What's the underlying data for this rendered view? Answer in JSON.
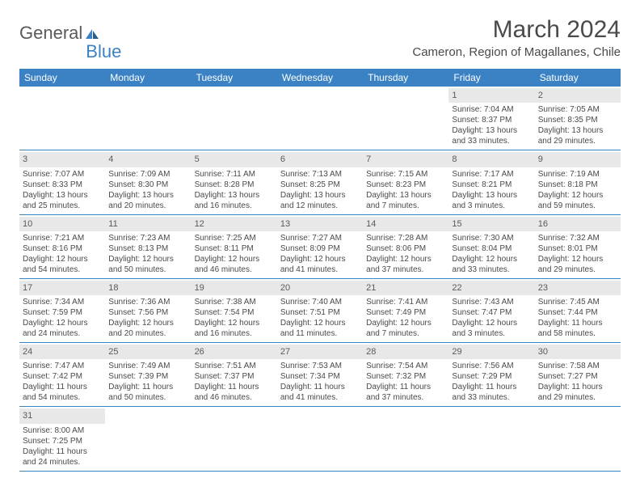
{
  "logo": {
    "text_general": "General",
    "text_blue": "Blue"
  },
  "title": "March 2024",
  "location": "Cameron, Region of Magallanes, Chile",
  "day_names": [
    "Sunday",
    "Monday",
    "Tuesday",
    "Wednesday",
    "Thursday",
    "Friday",
    "Saturday"
  ],
  "colors": {
    "header_bg": "#3b82c4",
    "header_fg": "#ffffff",
    "daynum_bg": "#e8e8e8",
    "text": "#4a4a4a"
  },
  "weeks": [
    [
      null,
      null,
      null,
      null,
      null,
      {
        "n": "1",
        "sr": "7:04 AM",
        "ss": "8:37 PM",
        "dl": "13 hours and 33 minutes."
      },
      {
        "n": "2",
        "sr": "7:05 AM",
        "ss": "8:35 PM",
        "dl": "13 hours and 29 minutes."
      }
    ],
    [
      {
        "n": "3",
        "sr": "7:07 AM",
        "ss": "8:33 PM",
        "dl": "13 hours and 25 minutes."
      },
      {
        "n": "4",
        "sr": "7:09 AM",
        "ss": "8:30 PM",
        "dl": "13 hours and 20 minutes."
      },
      {
        "n": "5",
        "sr": "7:11 AM",
        "ss": "8:28 PM",
        "dl": "13 hours and 16 minutes."
      },
      {
        "n": "6",
        "sr": "7:13 AM",
        "ss": "8:25 PM",
        "dl": "13 hours and 12 minutes."
      },
      {
        "n": "7",
        "sr": "7:15 AM",
        "ss": "8:23 PM",
        "dl": "13 hours and 7 minutes."
      },
      {
        "n": "8",
        "sr": "7:17 AM",
        "ss": "8:21 PM",
        "dl": "13 hours and 3 minutes."
      },
      {
        "n": "9",
        "sr": "7:19 AM",
        "ss": "8:18 PM",
        "dl": "12 hours and 59 minutes."
      }
    ],
    [
      {
        "n": "10",
        "sr": "7:21 AM",
        "ss": "8:16 PM",
        "dl": "12 hours and 54 minutes."
      },
      {
        "n": "11",
        "sr": "7:23 AM",
        "ss": "8:13 PM",
        "dl": "12 hours and 50 minutes."
      },
      {
        "n": "12",
        "sr": "7:25 AM",
        "ss": "8:11 PM",
        "dl": "12 hours and 46 minutes."
      },
      {
        "n": "13",
        "sr": "7:27 AM",
        "ss": "8:09 PM",
        "dl": "12 hours and 41 minutes."
      },
      {
        "n": "14",
        "sr": "7:28 AM",
        "ss": "8:06 PM",
        "dl": "12 hours and 37 minutes."
      },
      {
        "n": "15",
        "sr": "7:30 AM",
        "ss": "8:04 PM",
        "dl": "12 hours and 33 minutes."
      },
      {
        "n": "16",
        "sr": "7:32 AM",
        "ss": "8:01 PM",
        "dl": "12 hours and 29 minutes."
      }
    ],
    [
      {
        "n": "17",
        "sr": "7:34 AM",
        "ss": "7:59 PM",
        "dl": "12 hours and 24 minutes."
      },
      {
        "n": "18",
        "sr": "7:36 AM",
        "ss": "7:56 PM",
        "dl": "12 hours and 20 minutes."
      },
      {
        "n": "19",
        "sr": "7:38 AM",
        "ss": "7:54 PM",
        "dl": "12 hours and 16 minutes."
      },
      {
        "n": "20",
        "sr": "7:40 AM",
        "ss": "7:51 PM",
        "dl": "12 hours and 11 minutes."
      },
      {
        "n": "21",
        "sr": "7:41 AM",
        "ss": "7:49 PM",
        "dl": "12 hours and 7 minutes."
      },
      {
        "n": "22",
        "sr": "7:43 AM",
        "ss": "7:47 PM",
        "dl": "12 hours and 3 minutes."
      },
      {
        "n": "23",
        "sr": "7:45 AM",
        "ss": "7:44 PM",
        "dl": "11 hours and 58 minutes."
      }
    ],
    [
      {
        "n": "24",
        "sr": "7:47 AM",
        "ss": "7:42 PM",
        "dl": "11 hours and 54 minutes."
      },
      {
        "n": "25",
        "sr": "7:49 AM",
        "ss": "7:39 PM",
        "dl": "11 hours and 50 minutes."
      },
      {
        "n": "26",
        "sr": "7:51 AM",
        "ss": "7:37 PM",
        "dl": "11 hours and 46 minutes."
      },
      {
        "n": "27",
        "sr": "7:53 AM",
        "ss": "7:34 PM",
        "dl": "11 hours and 41 minutes."
      },
      {
        "n": "28",
        "sr": "7:54 AM",
        "ss": "7:32 PM",
        "dl": "11 hours and 37 minutes."
      },
      {
        "n": "29",
        "sr": "7:56 AM",
        "ss": "7:29 PM",
        "dl": "11 hours and 33 minutes."
      },
      {
        "n": "30",
        "sr": "7:58 AM",
        "ss": "7:27 PM",
        "dl": "11 hours and 29 minutes."
      }
    ],
    [
      {
        "n": "31",
        "sr": "8:00 AM",
        "ss": "7:25 PM",
        "dl": "11 hours and 24 minutes."
      },
      null,
      null,
      null,
      null,
      null,
      null
    ]
  ],
  "labels": {
    "sunrise": "Sunrise:",
    "sunset": "Sunset:",
    "daylight": "Daylight:"
  }
}
